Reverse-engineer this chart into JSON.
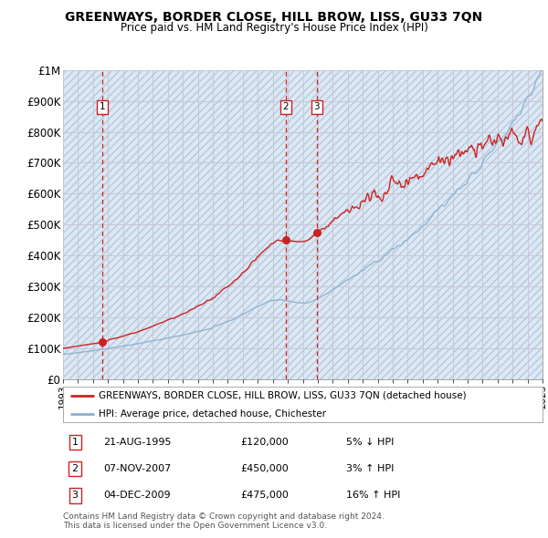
{
  "title": "GREENWAYS, BORDER CLOSE, HILL BROW, LISS, GU33 7QN",
  "subtitle": "Price paid vs. HM Land Registry's House Price Index (HPI)",
  "legend_line1": "GREENWAYS, BORDER CLOSE, HILL BROW, LISS, GU33 7QN (detached house)",
  "legend_line2": "HPI: Average price, detached house, Chichester",
  "sales": [
    {
      "num": 1,
      "date": "21-AUG-1995",
      "year": 1995.64,
      "price": 120000,
      "hpi_rel": "5% ↓ HPI"
    },
    {
      "num": 2,
      "date": "07-NOV-2007",
      "year": 2007.85,
      "price": 450000,
      "hpi_rel": "3% ↑ HPI"
    },
    {
      "num": 3,
      "date": "04-DEC-2009",
      "year": 2009.92,
      "price": 475000,
      "hpi_rel": "16% ↑ HPI"
    }
  ],
  "hpi_color": "#8ab0d0",
  "sale_color": "#cc2222",
  "grid_color": "#c8c8d8",
  "bg_color": "#dce4f0",
  "hatch_color": "#c8d0e0",
  "ylim": [
    0,
    1000000
  ],
  "yticks": [
    0,
    100000,
    200000,
    300000,
    400000,
    500000,
    600000,
    700000,
    800000,
    900000,
    1000000
  ],
  "xlim_start": 1993,
  "xlim_end": 2025,
  "footer": "Contains HM Land Registry data © Crown copyright and database right 2024.\nThis data is licensed under the Open Government Licence v3.0."
}
